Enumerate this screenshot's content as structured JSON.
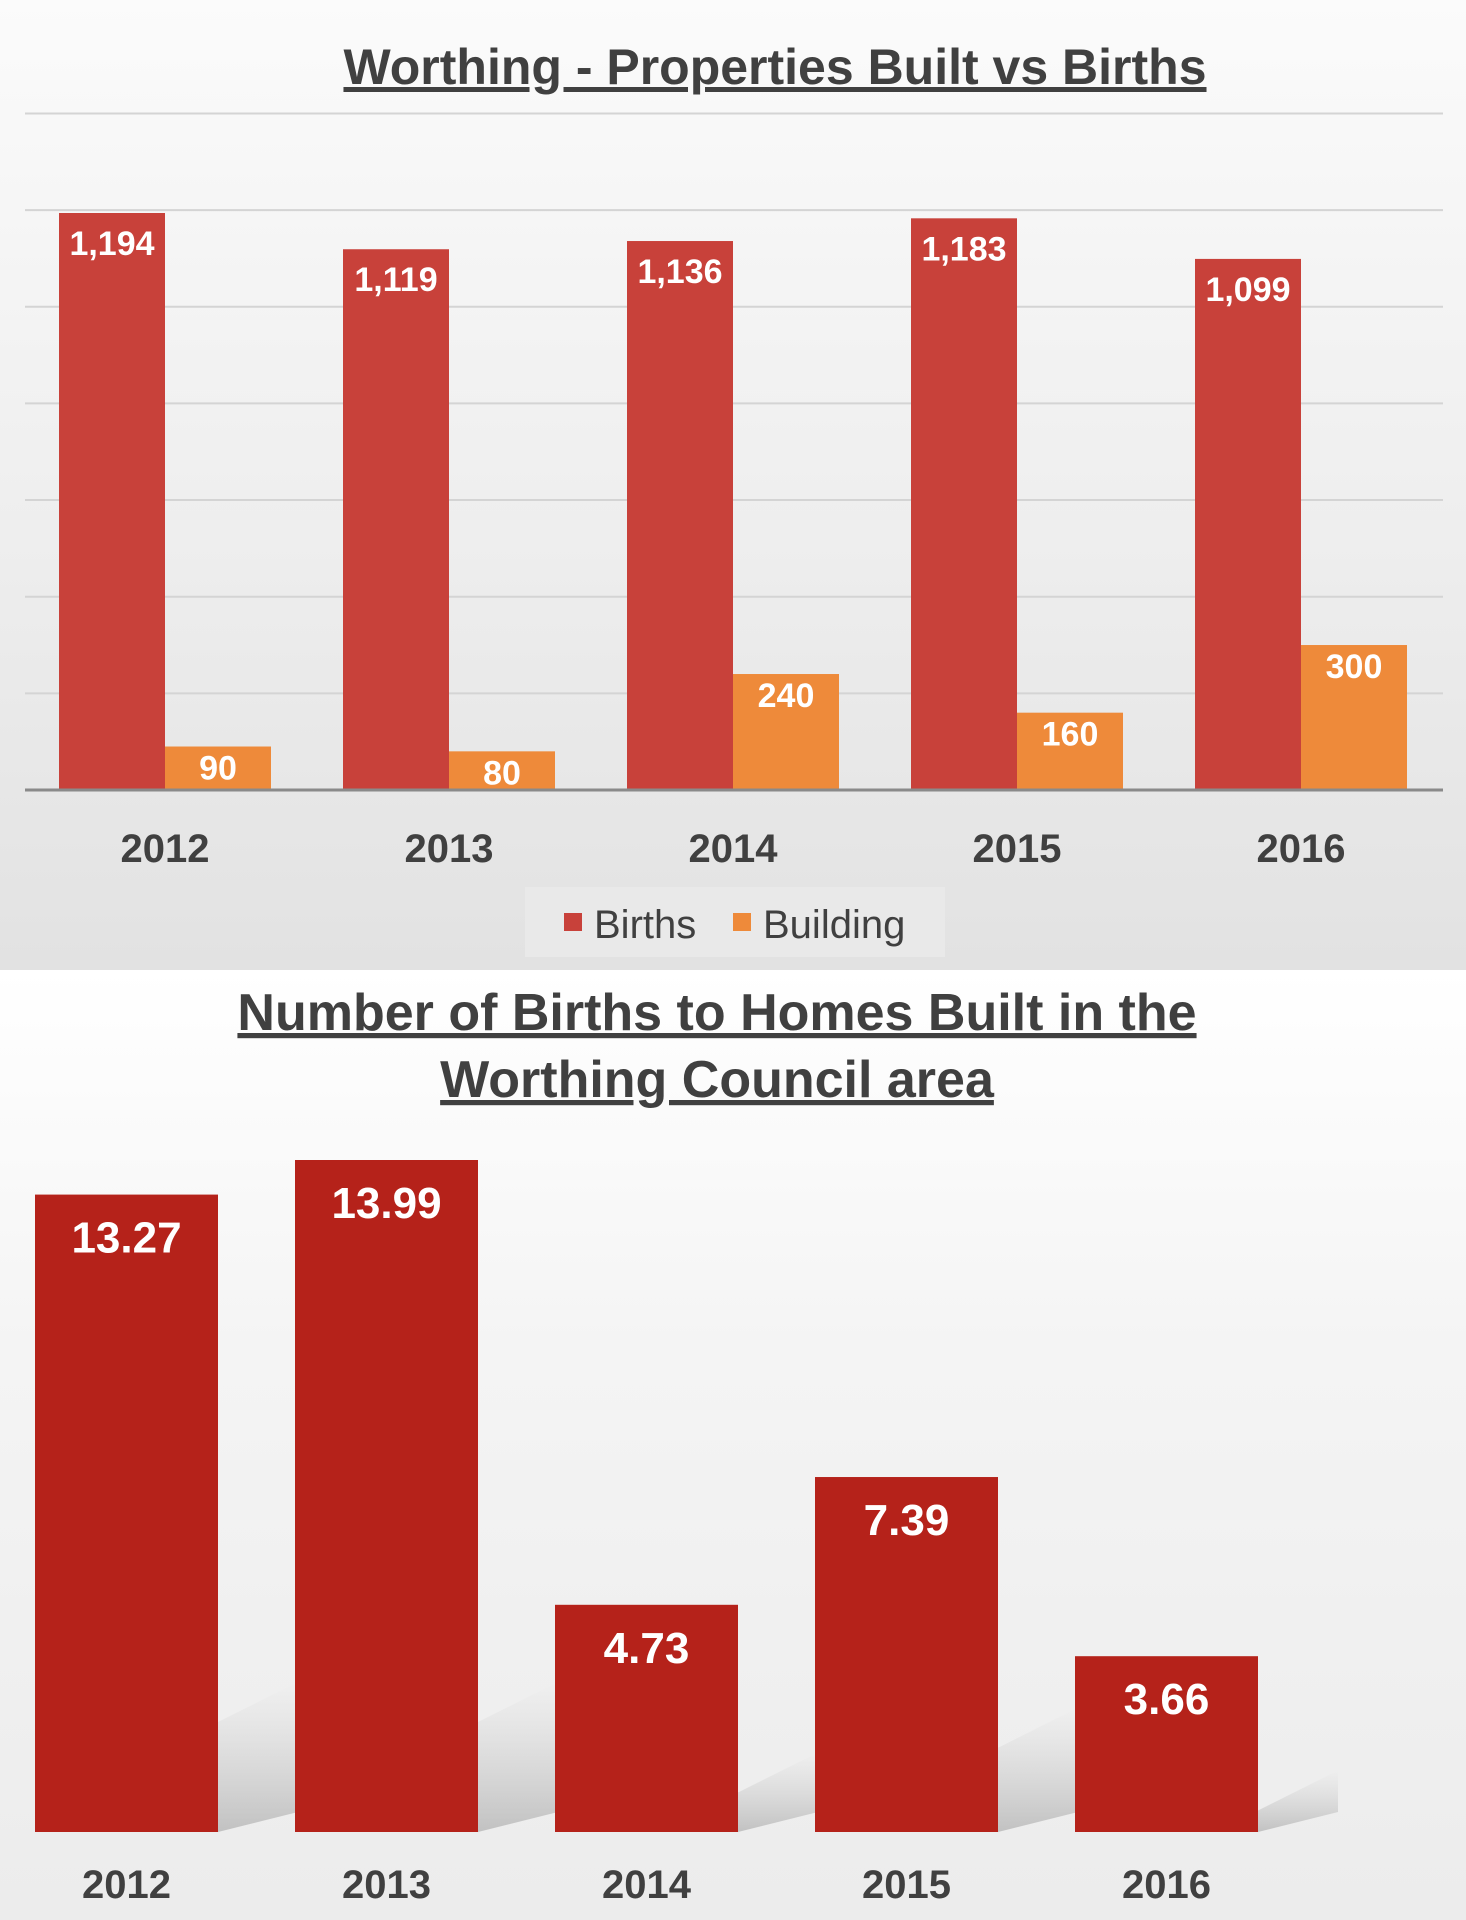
{
  "chart_data": [
    {
      "type": "bar",
      "title": "Worthing - Properties Built vs Births",
      "categories": [
        "2012",
        "2013",
        "2014",
        "2015",
        "2016"
      ],
      "series": [
        {
          "name": "Births",
          "values": [
            1194,
            1119,
            1136,
            1183,
            1099
          ],
          "labels": [
            "1,194",
            "1,119",
            "1,136",
            "1,183",
            "1,099"
          ],
          "color": "#c8413a"
        },
        {
          "name": "Building",
          "values": [
            90,
            80,
            240,
            160,
            300
          ],
          "labels": [
            "90",
            "80",
            "240",
            "160",
            "300"
          ],
          "color": "#ee8a3a"
        }
      ],
      "ylim": [
        0,
        1400
      ],
      "grid": true,
      "legend": "bottom"
    },
    {
      "type": "bar",
      "title_lines": [
        "Number of Births to Homes Built in the",
        "Worthing Council area"
      ],
      "categories": [
        "2012",
        "2013",
        "2014",
        "2015",
        "2016"
      ],
      "values": [
        13.27,
        13.99,
        4.73,
        7.39,
        3.66
      ],
      "labels": [
        "13.27",
        "13.99",
        "4.73",
        "7.39",
        "3.66"
      ],
      "color": "#b5221a",
      "ylim": [
        0,
        14
      ],
      "grid": false
    }
  ]
}
